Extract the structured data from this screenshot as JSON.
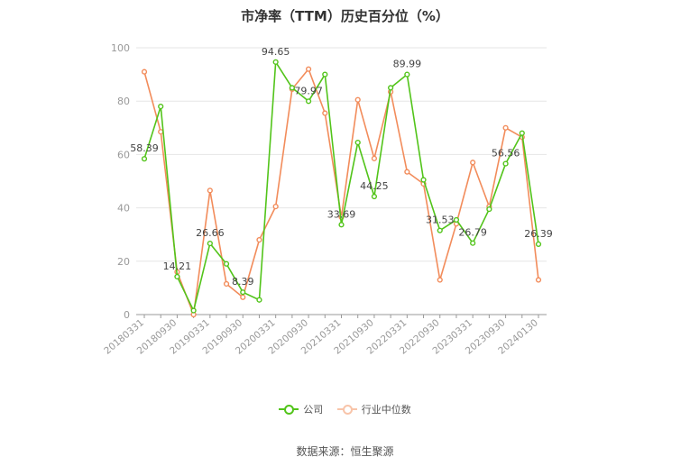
{
  "chart_data": {
    "type": "line",
    "title": "市净率（TTM）历史百分位（%）",
    "ylim": [
      0,
      100
    ],
    "yticks": [
      0,
      20,
      40,
      60,
      80,
      100
    ],
    "grid": true,
    "legend_position": "bottom",
    "x": [
      "20180331",
      "20180630",
      "20180930",
      "20181231",
      "20190331",
      "20190630",
      "20190930",
      "20191231",
      "20200331",
      "20200630",
      "20200930",
      "20201231",
      "20210331",
      "20210630",
      "20210930",
      "20211231",
      "20220331",
      "20220630",
      "20220930",
      "20221231",
      "20230331",
      "20230630",
      "20230930",
      "20231231",
      "20240130"
    ],
    "xtick_labels": [
      "20180331",
      "20180930",
      "20190331",
      "20190930",
      "20200331",
      "20200930",
      "20210331",
      "20210930",
      "20220331",
      "20220930",
      "20230331",
      "20230930",
      "20240130"
    ],
    "series": [
      {
        "name": "公司",
        "color": "#52c41a",
        "values": [
          58.39,
          78,
          14.21,
          1.5,
          26.66,
          19,
          8.39,
          5.5,
          94.65,
          85,
          79.97,
          90,
          33.69,
          64.5,
          44.25,
          85,
          89.99,
          50.5,
          31.53,
          35.5,
          26.79,
          39.5,
          56.56,
          68,
          26.39
        ],
        "data_labels": [
          {
            "index": 0,
            "text": "58.39"
          },
          {
            "index": 2,
            "text": "14.21"
          },
          {
            "index": 4,
            "text": "26.66"
          },
          {
            "index": 6,
            "text": "8.39"
          },
          {
            "index": 8,
            "text": "94.65"
          },
          {
            "index": 10,
            "text": "79.97"
          },
          {
            "index": 12,
            "text": "33.69"
          },
          {
            "index": 14,
            "text": "44.25"
          },
          {
            "index": 16,
            "text": "89.99"
          },
          {
            "index": 18,
            "text": "31.53"
          },
          {
            "index": 20,
            "text": "26.79"
          },
          {
            "index": 22,
            "text": "56.56"
          },
          {
            "index": 24,
            "text": "26.39"
          }
        ]
      },
      {
        "name": "行业中位数",
        "color": "#f28c5b",
        "values": [
          91,
          68.5,
          16,
          0,
          46.5,
          11.5,
          6.5,
          28,
          40.5,
          84.5,
          92,
          75.5,
          36.5,
          80.5,
          58.5,
          83.5,
          53.5,
          49,
          13,
          34,
          57,
          40.5,
          70,
          66.5,
          13
        ]
      }
    ]
  },
  "source_text": "数据来源：恒生聚源"
}
